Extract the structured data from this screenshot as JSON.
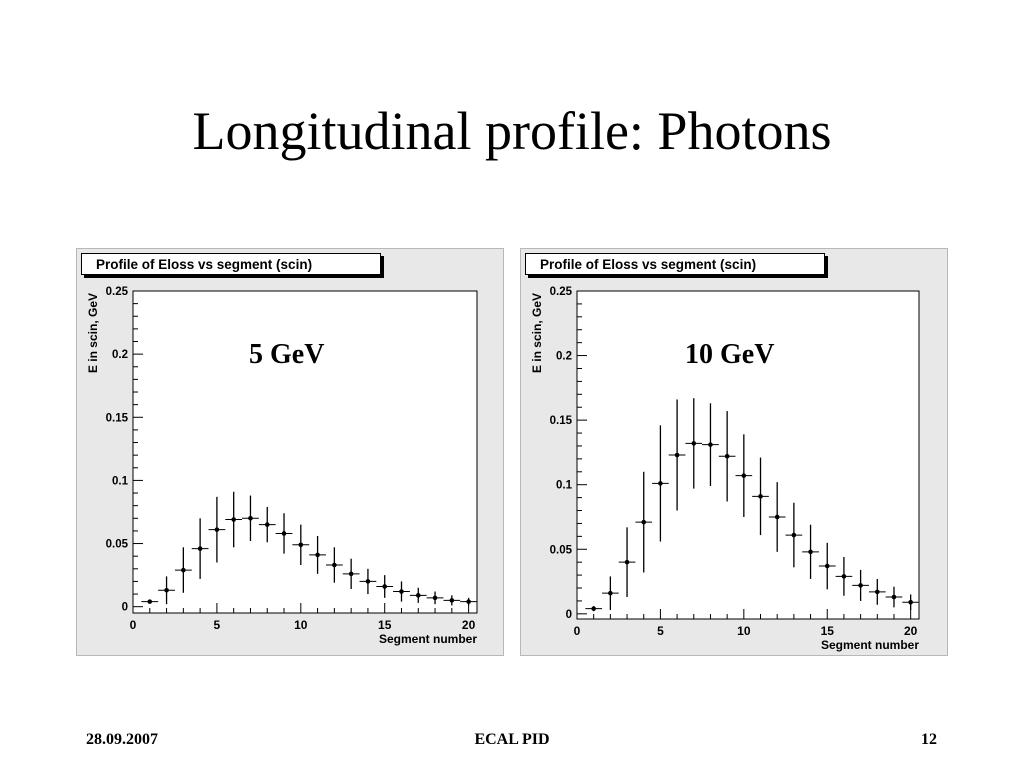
{
  "slide": {
    "title": "Longitudinal profile: Photons",
    "footer_left": "28.09.2007",
    "footer_center": "ECAL PID",
    "footer_right": "12"
  },
  "chart_data": [
    {
      "type": "scatter",
      "title": "Profile of Eloss vs segment (scin)",
      "annotation": "5 GeV",
      "xlabel": "Segment number",
      "ylabel": "E in scin, GeV",
      "xlim": [
        0,
        20.5
      ],
      "ylim": [
        -0.005,
        0.25
      ],
      "xticks": [
        0,
        5,
        10,
        15,
        20
      ],
      "xtick_labels": [
        "0",
        "5",
        "10",
        "15",
        "20"
      ],
      "yticks": [
        0,
        0.05,
        0.1,
        0.15,
        0.2,
        0.25
      ],
      "ytick_labels": [
        "0",
        "0.05",
        "0.1",
        "0.15",
        "0.2",
        "0.25"
      ],
      "grid": false,
      "series": [
        {
          "x": [
            1,
            2,
            3,
            4,
            5,
            6,
            7,
            8,
            9,
            10,
            11,
            12,
            13,
            14,
            15,
            16,
            17,
            18,
            19,
            20
          ],
          "y": [
            0.004,
            0.013,
            0.029,
            0.046,
            0.061,
            0.069,
            0.07,
            0.065,
            0.058,
            0.049,
            0.041,
            0.033,
            0.026,
            0.02,
            0.016,
            0.012,
            0.009,
            0.007,
            0.005,
            0.004
          ],
          "yerr": [
            0.0015,
            0.011,
            0.018,
            0.024,
            0.026,
            0.022,
            0.018,
            0.014,
            0.016,
            0.016,
            0.015,
            0.014,
            0.012,
            0.01,
            0.009,
            0.008,
            0.006,
            0.005,
            0.004,
            0.003
          ]
        }
      ]
    },
    {
      "type": "scatter",
      "title": "Profile of Eloss vs segment (scin)",
      "annotation": "10 GeV",
      "xlabel": "Segment number",
      "ylabel": "E in scin, GeV",
      "xlim": [
        0,
        20.5
      ],
      "ylim": [
        -0.004,
        0.25
      ],
      "xticks": [
        0,
        5,
        10,
        15,
        20
      ],
      "xtick_labels": [
        "0",
        "5",
        "10",
        "15",
        "20"
      ],
      "yticks": [
        0,
        0.05,
        0.1,
        0.15,
        0.2,
        0.25
      ],
      "ytick_labels": [
        "0",
        "0.05",
        "0.1",
        "0.15",
        "0.2",
        "0.25"
      ],
      "grid": false,
      "series": [
        {
          "x": [
            1,
            2,
            3,
            4,
            5,
            6,
            7,
            8,
            9,
            10,
            11,
            12,
            13,
            14,
            15,
            16,
            17,
            18,
            19,
            20
          ],
          "y": [
            0.004,
            0.016,
            0.04,
            0.071,
            0.101,
            0.123,
            0.132,
            0.131,
            0.122,
            0.107,
            0.091,
            0.075,
            0.061,
            0.048,
            0.037,
            0.029,
            0.022,
            0.017,
            0.013,
            0.009
          ],
          "yerr": [
            0.002,
            0.013,
            0.027,
            0.039,
            0.045,
            0.043,
            0.035,
            0.032,
            0.035,
            0.032,
            0.03,
            0.027,
            0.025,
            0.021,
            0.018,
            0.015,
            0.012,
            0.01,
            0.008,
            0.006
          ]
        }
      ]
    }
  ]
}
